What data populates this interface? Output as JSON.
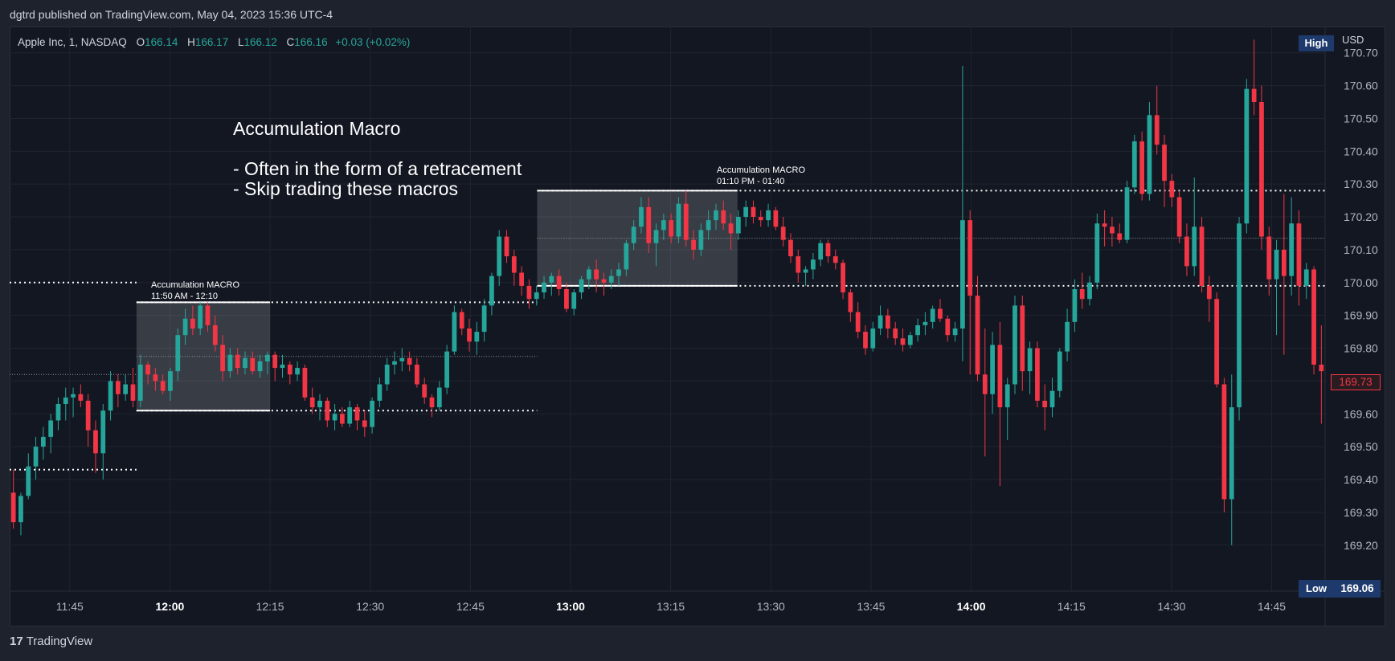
{
  "publisher_line": "dgtrd published on TradingView.com, May 04, 2023 15:36 UTC-4",
  "legend": {
    "symbol": "Apple Inc, 1, NASDAQ",
    "o_label": "O",
    "o": "166.14",
    "h_label": "H",
    "h": "166.17",
    "l_label": "L",
    "l": "166.12",
    "c_label": "C",
    "c": "166.16",
    "change": "+0.03 (+0.02%)"
  },
  "price_axis": {
    "currency": "USD",
    "high_badge": "High",
    "low_badge": "Low",
    "low_value": "169.06",
    "last_price": "169.73"
  },
  "note": {
    "text": "Accumulation Macro\n\n- Often in the form of a retracement\n- Skip trading these macros"
  },
  "boxes": [
    {
      "label": "Accumulation MACRO\n11:50 AM - 12:10",
      "top": 169.94,
      "bottom": 169.61
    },
    {
      "label": "Accumulation MACRO\n01:10 PM - 01:40",
      "top": 170.28,
      "bottom": 169.99
    }
  ],
  "footer": {
    "brand": "TradingView",
    "mark": "17"
  },
  "colors": {
    "up": "#26a69a",
    "down": "#f23645",
    "background": "#131722"
  },
  "chart_data": {
    "type": "candlestick",
    "ylim": [
      169.06,
      170.78
    ],
    "y_ticks": [
      169.2,
      169.3,
      169.4,
      169.5,
      169.6,
      169.7,
      169.8,
      169.9,
      170.0,
      170.1,
      170.2,
      170.3,
      170.4,
      170.5,
      170.6,
      170.7
    ],
    "y_tick_labels": [
      "169.20",
      "169.30",
      "169.40",
      "169.50",
      "169.60",
      "169.70",
      "169.80",
      "169.90",
      "170.00",
      "170.10",
      "170.20",
      "170.30",
      "170.40",
      "170.50",
      "170.60",
      "170.70"
    ],
    "x_range_minutes": [
      696,
      893
    ],
    "x_ticks": [
      {
        "min": 705,
        "label": "11:45",
        "bold": false
      },
      {
        "min": 720,
        "label": "12:00",
        "bold": true
      },
      {
        "min": 735,
        "label": "12:15",
        "bold": false
      },
      {
        "min": 750,
        "label": "12:30",
        "bold": false
      },
      {
        "min": 765,
        "label": "12:45",
        "bold": false
      },
      {
        "min": 780,
        "label": "13:00",
        "bold": true
      },
      {
        "min": 795,
        "label": "13:15",
        "bold": false
      },
      {
        "min": 810,
        "label": "13:30",
        "bold": false
      },
      {
        "min": 825,
        "label": "13:45",
        "bold": false
      },
      {
        "min": 840,
        "label": "14:00",
        "bold": true
      },
      {
        "min": 855,
        "label": "14:15",
        "bold": false
      },
      {
        "min": 870,
        "label": "14:30",
        "bold": false
      },
      {
        "min": 885,
        "label": "14:45",
        "bold": false
      }
    ],
    "levels": [
      {
        "value": 170.0,
        "from": 696,
        "to": 715,
        "style": "dotted"
      },
      {
        "value": 169.43,
        "from": 696,
        "to": 715,
        "style": "dotted"
      },
      {
        "value": 169.72,
        "from": 696,
        "to": 715,
        "style": "dotted-thin"
      },
      {
        "value": 169.94,
        "from": 715,
        "to": 775,
        "style": "dotted"
      },
      {
        "value": 169.61,
        "from": 715,
        "to": 775,
        "style": "dotted"
      },
      {
        "value": 169.775,
        "from": 715,
        "to": 775,
        "style": "dotted-thin"
      },
      {
        "value": 170.28,
        "from": 775,
        "to": 893,
        "style": "dotted"
      },
      {
        "value": 169.99,
        "from": 775,
        "to": 893,
        "style": "dotted"
      },
      {
        "value": 170.135,
        "from": 775,
        "to": 893,
        "style": "dotted-thin"
      }
    ],
    "boxes": [
      {
        "from": 715,
        "to": 735,
        "top": 169.94,
        "bottom": 169.61
      },
      {
        "from": 775,
        "to": 805,
        "top": 170.28,
        "bottom": 169.99
      }
    ],
    "candles": [
      [
        169.36,
        169.43,
        169.25,
        169.27
      ],
      [
        169.27,
        169.36,
        169.23,
        169.35
      ],
      [
        169.35,
        169.48,
        169.34,
        169.44
      ],
      [
        169.44,
        169.53,
        169.4,
        169.5
      ],
      [
        169.5,
        169.56,
        169.46,
        169.53
      ],
      [
        169.53,
        169.6,
        169.48,
        169.58
      ],
      [
        169.58,
        169.65,
        169.55,
        169.63
      ],
      [
        169.63,
        169.68,
        169.58,
        169.65
      ],
      [
        169.65,
        169.68,
        169.59,
        169.66
      ],
      [
        169.66,
        169.69,
        169.62,
        169.64
      ],
      [
        169.64,
        169.66,
        169.5,
        169.55
      ],
      [
        169.55,
        169.58,
        169.42,
        169.48
      ],
      [
        169.48,
        169.63,
        169.4,
        169.61
      ],
      [
        169.61,
        169.73,
        169.58,
        169.7
      ],
      [
        169.7,
        169.72,
        169.62,
        169.66
      ],
      [
        169.66,
        169.72,
        169.64,
        169.69
      ],
      [
        169.69,
        169.74,
        169.62,
        169.64
      ],
      [
        169.64,
        169.78,
        169.62,
        169.75
      ],
      [
        169.75,
        169.76,
        169.69,
        169.72
      ],
      [
        169.72,
        169.74,
        169.67,
        169.7
      ],
      [
        169.7,
        169.72,
        169.66,
        169.67
      ],
      [
        169.67,
        169.74,
        169.64,
        169.73
      ],
      [
        169.73,
        169.86,
        169.7,
        169.84
      ],
      [
        169.84,
        169.92,
        169.81,
        169.89
      ],
      [
        169.89,
        169.93,
        169.84,
        169.86
      ],
      [
        169.86,
        169.94,
        169.84,
        169.93
      ],
      [
        169.93,
        169.94,
        169.85,
        169.87
      ],
      [
        169.87,
        169.9,
        169.79,
        169.81
      ],
      [
        169.81,
        169.84,
        169.7,
        169.73
      ],
      [
        169.73,
        169.8,
        169.71,
        169.78
      ],
      [
        169.78,
        169.8,
        169.72,
        169.74
      ],
      [
        169.74,
        169.79,
        169.72,
        169.77
      ],
      [
        169.77,
        169.79,
        169.72,
        169.73
      ],
      [
        169.73,
        169.78,
        169.71,
        169.76
      ],
      [
        169.76,
        169.79,
        169.72,
        169.78
      ],
      [
        169.78,
        169.79,
        169.7,
        169.74
      ],
      [
        169.74,
        169.78,
        169.71,
        169.75
      ],
      [
        169.75,
        169.76,
        169.69,
        169.72
      ],
      [
        169.72,
        169.76,
        169.7,
        169.74
      ],
      [
        169.74,
        169.75,
        169.64,
        169.65
      ],
      [
        169.65,
        169.68,
        169.6,
        169.62
      ],
      [
        169.62,
        169.66,
        169.58,
        169.64
      ],
      [
        169.64,
        169.65,
        169.56,
        169.58
      ],
      [
        169.58,
        169.63,
        169.55,
        169.6
      ],
      [
        169.6,
        169.62,
        169.56,
        169.57
      ],
      [
        169.57,
        169.64,
        169.56,
        169.62
      ],
      [
        169.62,
        169.63,
        169.55,
        169.58
      ],
      [
        169.58,
        169.61,
        169.53,
        169.56
      ],
      [
        169.56,
        169.65,
        169.54,
        169.64
      ],
      [
        169.64,
        169.71,
        169.62,
        169.69
      ],
      [
        169.69,
        169.77,
        169.67,
        169.75
      ],
      [
        169.75,
        169.79,
        169.72,
        169.76
      ],
      [
        169.76,
        169.8,
        169.73,
        169.77
      ],
      [
        169.77,
        169.79,
        169.73,
        169.75
      ],
      [
        169.75,
        169.77,
        169.68,
        169.69
      ],
      [
        169.69,
        169.71,
        169.63,
        169.65
      ],
      [
        169.65,
        169.66,
        169.59,
        169.62
      ],
      [
        169.62,
        169.7,
        169.61,
        169.68
      ],
      [
        169.68,
        169.81,
        169.66,
        169.79
      ],
      [
        169.79,
        169.93,
        169.78,
        169.91
      ],
      [
        169.91,
        169.92,
        169.84,
        169.86
      ],
      [
        169.86,
        169.89,
        169.79,
        169.82
      ],
      [
        169.82,
        169.88,
        169.78,
        169.85
      ],
      [
        169.85,
        169.95,
        169.82,
        169.93
      ],
      [
        169.93,
        170.03,
        169.9,
        170.02
      ],
      [
        170.02,
        170.16,
        169.99,
        170.14
      ],
      [
        170.14,
        170.16,
        170.06,
        170.08
      ],
      [
        170.08,
        170.1,
        169.99,
        170.03
      ],
      [
        170.03,
        170.05,
        169.96,
        169.99
      ],
      [
        169.99,
        170.01,
        169.92,
        169.95
      ],
      [
        169.95,
        169.99,
        169.93,
        169.97
      ],
      [
        169.97,
        170.02,
        169.95,
        170.0
      ],
      [
        170.0,
        170.03,
        169.96,
        170.02
      ],
      [
        170.02,
        170.04,
        169.96,
        169.98
      ],
      [
        169.98,
        170.0,
        169.91,
        169.92
      ],
      [
        169.92,
        169.98,
        169.9,
        169.97
      ],
      [
        169.97,
        170.02,
        169.95,
        170.01
      ],
      [
        170.01,
        170.05,
        169.98,
        170.04
      ],
      [
        170.04,
        170.07,
        169.97,
        170.01
      ],
      [
        170.01,
        170.03,
        169.96,
        170.0
      ],
      [
        170.0,
        170.04,
        169.98,
        170.02
      ],
      [
        170.02,
        170.06,
        169.99,
        170.04
      ],
      [
        170.04,
        170.13,
        170.02,
        170.12
      ],
      [
        170.12,
        170.19,
        170.1,
        170.17
      ],
      [
        170.17,
        170.26,
        170.15,
        170.23
      ],
      [
        170.23,
        170.26,
        170.09,
        170.12
      ],
      [
        170.12,
        170.18,
        170.05,
        170.16
      ],
      [
        170.16,
        170.21,
        170.13,
        170.19
      ],
      [
        170.19,
        170.21,
        170.12,
        170.14
      ],
      [
        170.14,
        170.26,
        170.12,
        170.24
      ],
      [
        170.24,
        170.28,
        170.11,
        170.13
      ],
      [
        170.13,
        170.16,
        170.07,
        170.1
      ],
      [
        170.1,
        170.18,
        170.08,
        170.16
      ],
      [
        170.16,
        170.22,
        170.13,
        170.19
      ],
      [
        170.19,
        170.24,
        170.16,
        170.22
      ],
      [
        170.22,
        170.25,
        170.16,
        170.18
      ],
      [
        170.18,
        170.21,
        170.1,
        170.15
      ],
      [
        170.15,
        170.22,
        170.13,
        170.2
      ],
      [
        170.2,
        170.25,
        170.17,
        170.23
      ],
      [
        170.23,
        170.25,
        170.18,
        170.2
      ],
      [
        170.2,
        170.22,
        170.17,
        170.19
      ],
      [
        170.19,
        170.24,
        170.17,
        170.22
      ],
      [
        170.22,
        170.23,
        170.16,
        170.17
      ],
      [
        170.17,
        170.2,
        170.11,
        170.13
      ],
      [
        170.13,
        170.15,
        170.06,
        170.08
      ],
      [
        170.08,
        170.1,
        170.0,
        170.03
      ],
      [
        170.03,
        170.05,
        169.99,
        170.04
      ],
      [
        170.04,
        170.09,
        170.01,
        170.07
      ],
      [
        170.07,
        170.13,
        170.05,
        170.12
      ],
      [
        170.12,
        170.13,
        170.06,
        170.08
      ],
      [
        170.08,
        170.1,
        170.04,
        170.06
      ],
      [
        170.06,
        170.07,
        169.95,
        169.97
      ],
      [
        169.97,
        169.98,
        169.88,
        169.91
      ],
      [
        169.91,
        169.94,
        169.83,
        169.85
      ],
      [
        169.85,
        169.87,
        169.78,
        169.8
      ],
      [
        169.8,
        169.88,
        169.79,
        169.86
      ],
      [
        169.86,
        169.93,
        169.84,
        169.9
      ],
      [
        169.9,
        169.92,
        169.83,
        169.86
      ],
      [
        169.86,
        169.88,
        169.81,
        169.83
      ],
      [
        169.83,
        169.86,
        169.79,
        169.81
      ],
      [
        169.81,
        169.85,
        169.8,
        169.84
      ],
      [
        169.84,
        169.89,
        169.82,
        169.87
      ],
      [
        169.87,
        169.91,
        169.84,
        169.88
      ],
      [
        169.88,
        169.93,
        169.86,
        169.92
      ],
      [
        169.92,
        169.95,
        169.88,
        169.89
      ],
      [
        169.89,
        169.9,
        169.82,
        169.84
      ],
      [
        169.84,
        169.88,
        169.82,
        169.86
      ],
      [
        169.86,
        170.66,
        169.76,
        170.19
      ],
      [
        170.19,
        170.22,
        169.72,
        169.96
      ],
      [
        169.96,
        170.02,
        169.7,
        169.72
      ],
      [
        169.72,
        169.86,
        169.47,
        169.66
      ],
      [
        169.66,
        169.85,
        169.6,
        169.81
      ],
      [
        169.81,
        169.88,
        169.38,
        169.62
      ],
      [
        169.62,
        169.71,
        169.52,
        169.69
      ],
      [
        169.69,
        169.96,
        169.66,
        169.93
      ],
      [
        169.93,
        169.96,
        169.67,
        169.73
      ],
      [
        169.73,
        169.82,
        169.66,
        169.8
      ],
      [
        169.8,
        169.82,
        169.62,
        169.64
      ],
      [
        169.64,
        169.69,
        169.55,
        169.62
      ],
      [
        169.62,
        169.71,
        169.59,
        169.67
      ],
      [
        169.67,
        169.8,
        169.65,
        169.79
      ],
      [
        169.79,
        169.92,
        169.76,
        169.88
      ],
      [
        169.88,
        170.01,
        169.85,
        169.98
      ],
      [
        169.98,
        170.03,
        169.92,
        169.95
      ],
      [
        169.95,
        170.02,
        169.93,
        170.0
      ],
      [
        170.0,
        170.21,
        169.98,
        170.18
      ],
      [
        170.18,
        170.22,
        170.11,
        170.17
      ],
      [
        170.17,
        170.2,
        170.11,
        170.15
      ],
      [
        170.15,
        170.18,
        170.12,
        170.13
      ],
      [
        170.13,
        170.31,
        170.12,
        170.29
      ],
      [
        170.29,
        170.45,
        170.27,
        170.43
      ],
      [
        170.43,
        170.46,
        170.25,
        170.27
      ],
      [
        170.27,
        170.55,
        170.25,
        170.51
      ],
      [
        170.51,
        170.6,
        170.39,
        170.42
      ],
      [
        170.42,
        170.45,
        170.23,
        170.31
      ],
      [
        170.31,
        170.33,
        170.23,
        170.26
      ],
      [
        170.26,
        170.28,
        170.12,
        170.14
      ],
      [
        170.14,
        170.18,
        170.02,
        170.05
      ],
      [
        170.05,
        170.32,
        170.02,
        170.17
      ],
      [
        170.17,
        170.2,
        169.97,
        169.99
      ],
      [
        169.99,
        170.02,
        169.88,
        169.95
      ],
      [
        169.95,
        169.97,
        169.68,
        169.69
      ],
      [
        169.69,
        169.71,
        169.3,
        169.34
      ],
      [
        169.34,
        169.72,
        169.2,
        169.62
      ],
      [
        169.62,
        170.2,
        169.58,
        170.18
      ],
      [
        170.18,
        170.62,
        170.15,
        170.59
      ],
      [
        170.59,
        170.74,
        170.51,
        170.55
      ],
      [
        170.55,
        170.6,
        170.1,
        170.14
      ],
      [
        170.14,
        170.17,
        169.96,
        170.01
      ],
      [
        170.01,
        170.13,
        169.84,
        170.1
      ],
      [
        170.1,
        170.27,
        169.78,
        170.02
      ],
      [
        170.02,
        170.26,
        169.96,
        170.18
      ],
      [
        170.18,
        170.22,
        169.93,
        169.99
      ],
      [
        169.99,
        170.06,
        169.95,
        170.04
      ],
      [
        170.04,
        170.05,
        169.72,
        169.75
      ],
      [
        169.75,
        169.87,
        169.57,
        169.73
      ]
    ]
  }
}
